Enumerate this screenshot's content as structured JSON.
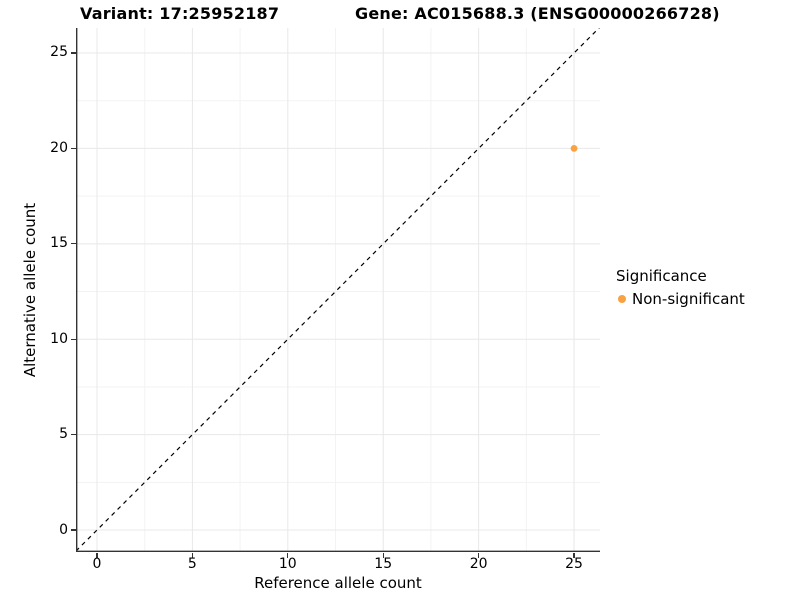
{
  "chart_data": {
    "type": "scatter",
    "title_left": "Variant: 17:25952187",
    "title_right": "Gene: AC015688.3 (ENSG00000266728)",
    "xlabel": "Reference allele count",
    "ylabel": "Alternative allele count",
    "xlim": [
      -1.1,
      26.36
    ],
    "ylim": [
      -1.15,
      26.31
    ],
    "x_ticks": [
      0,
      5,
      10,
      15,
      20,
      25
    ],
    "y_ticks": [
      0,
      5,
      10,
      15,
      20,
      25
    ],
    "minor_ticks_x": [
      2.5,
      7.5,
      12.5,
      17.5,
      22.5
    ],
    "minor_ticks_y": [
      2.5,
      7.5,
      12.5,
      17.5,
      22.5
    ],
    "grid": true,
    "points": [
      {
        "x": 25,
        "y": 20,
        "series": "Non-significant",
        "color": "#F9A242"
      }
    ],
    "reference_line": {
      "type": "abline",
      "slope": 1,
      "intercept": 0,
      "style": "dashed",
      "color": "#000000"
    },
    "legend": {
      "title": "Significance",
      "position": "right",
      "entries": [
        {
          "label": "Non-significant",
          "color": "#F9A242"
        }
      ]
    }
  },
  "colors": {
    "accent_orange": "#F9A242",
    "axis_line": "#333333",
    "grid_major": "#E8E8E8",
    "grid_minor": "#F3F3F3",
    "text": "#000000",
    "background": "#FFFFFF"
  }
}
